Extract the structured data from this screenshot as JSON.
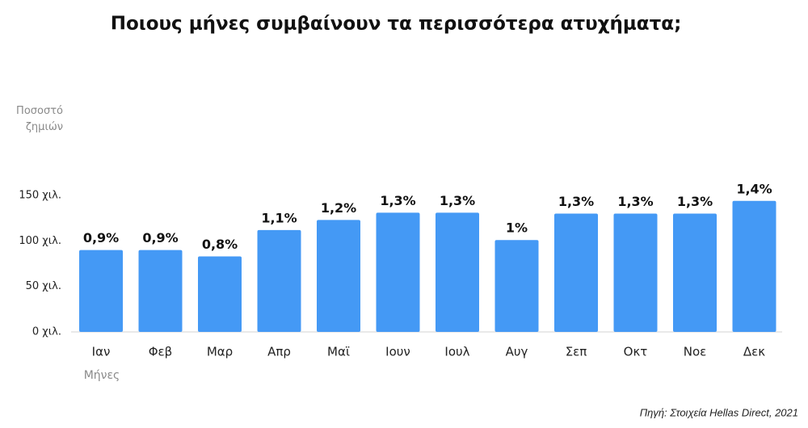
{
  "chart_data": {
    "type": "bar",
    "title": "Ποιους μήνες συμβαίνουν τα περισσότερα ατυχήματα;",
    "ylabel": "Ποσοστό ζημιών",
    "xlabel": "Μήνες",
    "source": "Πηγή: Στοιχεία Hellas Direct, 2021",
    "categories": [
      "Ιαν",
      "Φεβ",
      "Μαρ",
      "Απρ",
      "Μαϊ",
      "Ιουν",
      "Ιουλ",
      "Αυγ",
      "Σεπ",
      "Οκτ",
      "Νοε",
      "Δεκ"
    ],
    "values": [
      90,
      90,
      83,
      112,
      123,
      131,
      131,
      101,
      130,
      130,
      130,
      144
    ],
    "percentages": [
      0.9,
      0.9,
      0.8,
      1.1,
      1.2,
      1.3,
      1.3,
      1,
      1.3,
      1.3,
      1.3,
      1.4
    ],
    "percentage_labels": [
      "0,9%",
      "0,9%",
      "0,8%",
      "1,1%",
      "1,2%",
      "1,3%",
      "1,3%",
      "1%",
      "1,3%",
      "1,3%",
      "1,3%",
      "1,4%"
    ],
    "color": "#4499f5",
    "ylim": [
      0,
      150
    ],
    "yticks": [
      {
        "value": 0,
        "label": "0 χιλ."
      },
      {
        "value": 50,
        "label": "50 χιλ."
      },
      {
        "value": 100,
        "label": "100 χιλ."
      },
      {
        "value": 150,
        "label": "150 χιλ."
      }
    ],
    "grid": false
  }
}
